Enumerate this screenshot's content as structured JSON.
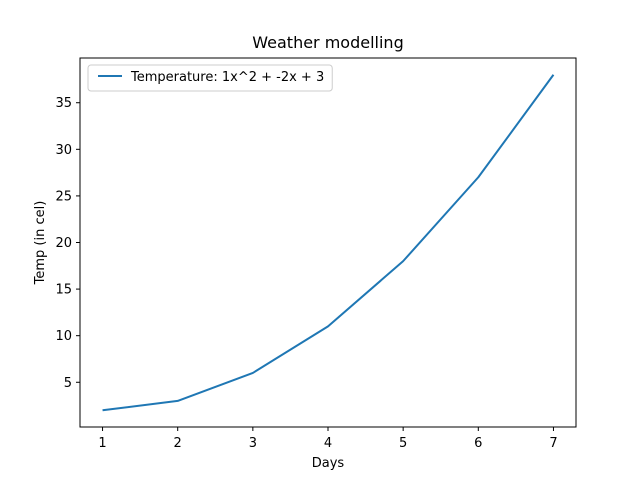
{
  "chart_data": {
    "type": "line",
    "title": "Weather modelling",
    "xlabel": "Days",
    "ylabel": "Temp (in cel)",
    "x": [
      1,
      2,
      3,
      4,
      5,
      6,
      7
    ],
    "series": [
      {
        "name": "Temperature: 1x^2 + -2x + 3",
        "values": [
          2,
          3,
          6,
          11,
          18,
          27,
          38
        ],
        "color": "#1f77b4"
      }
    ],
    "xlim": [
      0.7,
      7.3
    ],
    "ylim": [
      0.2,
      39.8
    ],
    "xticks": [
      1,
      2,
      3,
      4,
      5,
      6,
      7
    ],
    "yticks": [
      5,
      10,
      15,
      20,
      25,
      30,
      35
    ],
    "grid": false,
    "legend": "top-left"
  }
}
